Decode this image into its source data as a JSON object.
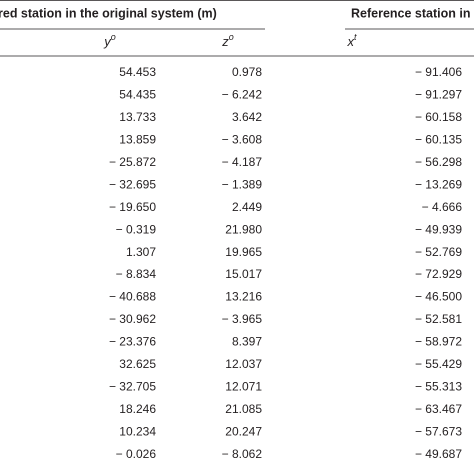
{
  "table": {
    "group_headers": [
      "red station in the original system (m)",
      "Reference station in"
    ],
    "columns": [
      {
        "base": "y",
        "sup": "o"
      },
      {
        "base": "z",
        "sup": "o"
      },
      {
        "base": "x",
        "sup": "t"
      }
    ],
    "rows": [
      [
        "54.453",
        "0.978",
        "− 91.406"
      ],
      [
        "54.435",
        "− 6.242",
        "− 91.297"
      ],
      [
        "13.733",
        "3.642",
        "− 60.158"
      ],
      [
        "13.859",
        "− 3.608",
        "− 60.135"
      ],
      [
        "− 25.872",
        "− 4.187",
        "− 56.298"
      ],
      [
        "− 32.695",
        "− 1.389",
        "− 13.269"
      ],
      [
        "− 19.650",
        "2.449",
        "− 4.666"
      ],
      [
        "− 0.319",
        "21.980",
        "− 49.939"
      ],
      [
        "1.307",
        "19.965",
        "− 52.769"
      ],
      [
        "− 8.834",
        "15.017",
        "− 72.929"
      ],
      [
        "− 40.688",
        "13.216",
        "− 46.500"
      ],
      [
        "− 30.962",
        "− 3.965",
        "− 52.581"
      ],
      [
        "− 23.376",
        "8.397",
        "− 58.972"
      ],
      [
        "32.625",
        "12.037",
        "− 55.429"
      ],
      [
        "− 32.705",
        "12.071",
        "− 55.313"
      ],
      [
        "18.246",
        "21.085",
        "− 63.467"
      ],
      [
        "10.234",
        "20.247",
        "− 57.673"
      ],
      [
        "− 0.026",
        "− 8.062",
        "− 49.687"
      ]
    ]
  }
}
